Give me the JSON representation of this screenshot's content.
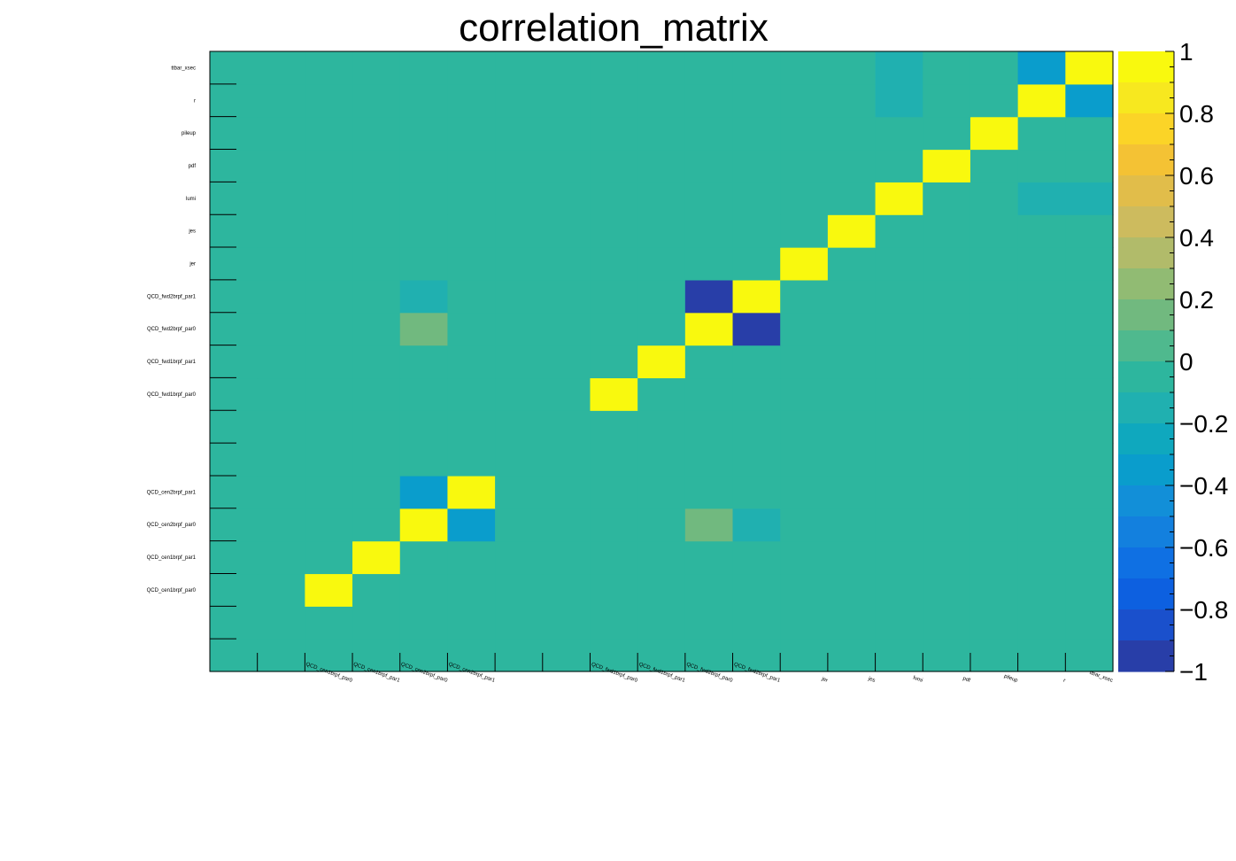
{
  "chart_data": {
    "type": "heatmap",
    "title": "correlation_matrix",
    "xlabel": "",
    "ylabel": "",
    "labels": [
      "",
      "",
      "QCD_cen1brpf_par0",
      "QCD_cen1brpf_par1",
      "QCD_cen2brpf_par0",
      "QCD_cen2brpf_par1",
      "",
      "",
      "QCD_fwd1brpf_par0",
      "QCD_fwd1brpf_par1",
      "QCD_fwd2brpf_par0",
      "QCD_fwd2brpf_par1",
      "jer",
      "jes",
      "lumi",
      "pdf",
      "pileup",
      "r",
      "ttbar_xsec"
    ],
    "z": [
      [
        0,
        0,
        0,
        0,
        0,
        0,
        0,
        0,
        0,
        0,
        0,
        0,
        0,
        0,
        0,
        0,
        0,
        0,
        0
      ],
      [
        0,
        0,
        0,
        0,
        0,
        0,
        0,
        0,
        0,
        0,
        0,
        0,
        0,
        0,
        0,
        0,
        0,
        0,
        0
      ],
      [
        0,
        0,
        1,
        -0.05,
        -0.05,
        -0.05,
        0,
        0,
        -0.05,
        -0.05,
        -0.05,
        0,
        -0.05,
        0,
        -0.05,
        0,
        -0.05,
        -0.05,
        -0.05
      ],
      [
        0,
        0,
        -0.05,
        1,
        0,
        0,
        0,
        0,
        0,
        0,
        0,
        -0.05,
        -0.05,
        -0.05,
        -0.05,
        0,
        -0.05,
        -0.05,
        -0.05
      ],
      [
        0,
        0,
        -0.05,
        0,
        1,
        -0.3,
        0,
        0,
        -0.05,
        -0.05,
        0.15,
        -0.15,
        -0.05,
        0,
        -0.05,
        0,
        -0.05,
        -0.05,
        -0.05
      ],
      [
        0,
        0,
        -0.05,
        0,
        -0.3,
        1,
        0,
        0,
        -0.05,
        -0.05,
        0,
        -0.05,
        -0.05,
        0,
        -0.05,
        0,
        -0.05,
        -0.05,
        -0.05
      ],
      [
        0,
        0,
        0,
        0,
        0,
        0,
        0,
        0,
        0,
        0,
        0,
        0,
        0,
        0,
        0,
        0,
        0,
        0,
        0
      ],
      [
        0,
        0,
        0,
        0,
        0,
        0,
        0,
        0,
        0,
        0,
        0,
        0,
        0,
        0,
        0,
        0,
        0,
        0,
        0
      ],
      [
        0,
        0,
        -0.05,
        0,
        -0.05,
        -0.05,
        0,
        0,
        1,
        -0.05,
        0,
        -0.05,
        -0.05,
        0,
        -0.05,
        0,
        -0.05,
        -0.05,
        -0.05
      ],
      [
        0,
        0,
        -0.05,
        0,
        -0.05,
        -0.05,
        0,
        0,
        -0.05,
        1,
        0,
        -0.05,
        -0.05,
        0,
        -0.05,
        0,
        -0.05,
        -0.05,
        -0.05
      ],
      [
        0,
        0,
        -0.05,
        0,
        0.15,
        0,
        0,
        0,
        0,
        0,
        1,
        -0.95,
        0,
        -0.05,
        0,
        -0.05,
        0,
        0,
        0
      ],
      [
        0,
        0,
        0,
        -0.05,
        -0.15,
        -0.05,
        0,
        0,
        -0.05,
        -0.05,
        -0.95,
        1,
        -0.05,
        0,
        -0.05,
        0,
        -0.05,
        -0.05,
        -0.05
      ],
      [
        0,
        0,
        -0.05,
        -0.05,
        -0.05,
        -0.05,
        0,
        0,
        -0.05,
        -0.05,
        0,
        -0.05,
        1,
        -0.05,
        -0.05,
        0,
        -0.05,
        -0.05,
        -0.05
      ],
      [
        0,
        0,
        0,
        -0.05,
        0,
        0,
        0,
        0,
        0,
        0,
        -0.05,
        0,
        -0.05,
        1,
        -0.05,
        0,
        0,
        -0.05,
        -0.05
      ],
      [
        0,
        0,
        -0.05,
        -0.05,
        -0.05,
        -0.05,
        0,
        0,
        -0.05,
        -0.05,
        0,
        -0.05,
        -0.05,
        -0.05,
        1,
        0,
        -0.05,
        -0.15,
        -0.15
      ],
      [
        0,
        0,
        0,
        0,
        0,
        0,
        0,
        0,
        0,
        0,
        -0.05,
        0,
        0,
        0,
        0,
        1,
        0,
        0,
        0
      ],
      [
        0,
        0,
        -0.05,
        -0.05,
        -0.05,
        -0.05,
        0,
        0,
        -0.05,
        -0.05,
        0,
        -0.05,
        -0.05,
        0,
        -0.05,
        0,
        1,
        -0.05,
        -0.05
      ],
      [
        0,
        0,
        -0.05,
        -0.05,
        -0.05,
        -0.05,
        0,
        0,
        -0.05,
        -0.05,
        0,
        -0.05,
        -0.05,
        -0.05,
        -0.15,
        0,
        -0.05,
        1,
        -0.3
      ],
      [
        0,
        0,
        -0.05,
        -0.05,
        -0.05,
        -0.05,
        0,
        0,
        -0.05,
        -0.05,
        0,
        -0.05,
        -0.05,
        -0.05,
        -0.15,
        0,
        -0.05,
        -0.3,
        1
      ]
    ],
    "zlim": [
      -1,
      1
    ],
    "colorbar_ticks": [
      "1",
      "0.8",
      "0.6",
      "0.4",
      "0.2",
      "0",
      "−0.2",
      "−0.4",
      "−0.6",
      "−0.8",
      "−1"
    ],
    "colorbar_tick_values": [
      1,
      0.8,
      0.6,
      0.4,
      0.2,
      0,
      -0.2,
      -0.4,
      -0.6,
      -0.8,
      -1
    ],
    "colorbar_colors": [
      "#f9f90e",
      "#f7e81f",
      "#fbd427",
      "#f4c234",
      "#e1bd4a",
      "#cdbb5e",
      "#b1bb6a",
      "#91bb73",
      "#71b97f",
      "#4fb98e",
      "#2db69e",
      "#20b0b0",
      "#0fa8be",
      "#0a9dcc",
      "#128fd8",
      "#1380de",
      "#0f70e3",
      "#0d60e0",
      "#1a50cc",
      "#283ea8"
    ],
    "grid": false,
    "legend": "colorbar-right"
  }
}
